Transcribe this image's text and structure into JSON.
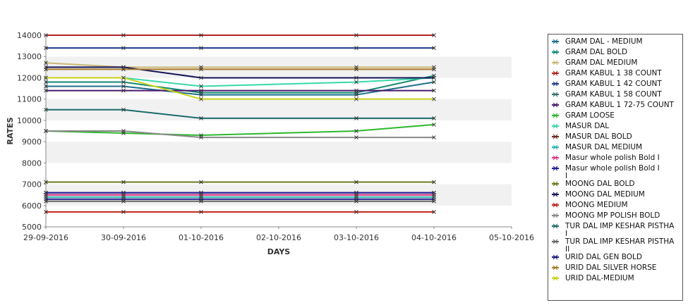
{
  "chart_data": {
    "type": "line",
    "title": "",
    "xlabel": "DAYS",
    "ylabel": "RATES",
    "x": [
      "29-09-2016",
      "30-09-2016",
      "01-10-2016",
      "03-10-2016",
      "04-10-2016"
    ],
    "x_ticks": [
      "29-09-2016",
      "30-09-2016",
      "01-10-2016",
      "02-10-2016",
      "03-10-2016",
      "04-10-2016",
      "05-10-2016"
    ],
    "xlim": [
      "29-09-2016",
      "05-10-2016"
    ],
    "ylim": [
      5000,
      14000
    ],
    "y_ticks": [
      "5000",
      "6000",
      "7000",
      "8000",
      "9000",
      "10000",
      "11000",
      "12000",
      "13000",
      "14000"
    ],
    "grid": "alternating horizontal bands",
    "legend_position": "right",
    "series": [
      {
        "name": "GRAM DAL - MEDIUM",
        "color": "#1f6f8b",
        "values": [
          11600,
          11600,
          11200,
          11200,
          11800
        ]
      },
      {
        "name": "GRAM DAL BOLD",
        "color": "#138a72",
        "values": [
          11800,
          11800,
          11300,
          11300,
          12100
        ]
      },
      {
        "name": "GRAM DAL MEDIUM",
        "color": "#c8b878",
        "values": [
          12700,
          12500,
          12500,
          12500,
          12500
        ]
      },
      {
        "name": "GRAM KABUL 1 38 COUNT",
        "color": "#b22222",
        "values": [
          14000,
          14000,
          14000,
          14000,
          14000
        ]
      },
      {
        "name": "GRAM KABUL 1 42 COUNT",
        "color": "#1e3a8a",
        "values": [
          13400,
          13400,
          13400,
          13400,
          13400
        ]
      },
      {
        "name": "GRAM KABUL 1 58 COUNT",
        "color": "#3a6e6e",
        "values": [
          6600,
          6600,
          6600,
          6600,
          6600
        ]
      },
      {
        "name": "GRAM KABUL 1 72-75 COUNT",
        "color": "#4b1a6e",
        "values": [
          11400,
          11400,
          11400,
          11400,
          11400
        ]
      },
      {
        "name": "GRAM LOOSE",
        "color": "#2db82d",
        "values": [
          9500,
          9400,
          9300,
          9500,
          9800
        ]
      },
      {
        "name": "MASUR DAL",
        "color": "#38d9a9",
        "values": [
          12000,
          12000,
          11600,
          11800,
          12000
        ]
      },
      {
        "name": "MASUR DAL BOLD",
        "color": "#6b2c1a",
        "values": [
          6500,
          6500,
          6500,
          6500,
          6500
        ]
      },
      {
        "name": "MASUR DAL MEDIUM",
        "color": "#2bb5b5",
        "values": [
          6400,
          6400,
          6400,
          6400,
          6400
        ]
      },
      {
        "name": "Masur whole polish Bold I",
        "color": "#e0338a",
        "values": [
          6500,
          6500,
          6500,
          6500,
          6500
        ]
      },
      {
        "name": "Masur whole polish Bold I I",
        "color": "#1a1a9c",
        "values": [
          6600,
          6600,
          6600,
          6600,
          6600
        ]
      },
      {
        "name": "MOONG DAL BOLD",
        "color": "#6b7a1a",
        "values": [
          7100,
          7100,
          7100,
          7100,
          7100
        ]
      },
      {
        "name": "MOONG DAL MEDIUM",
        "color": "#14145a",
        "values": [
          12500,
          12500,
          12000,
          12000,
          12000
        ]
      },
      {
        "name": "MOONG MEDIUM",
        "color": "#c0241a",
        "values": [
          5700,
          5700,
          5700,
          5700,
          5700
        ]
      },
      {
        "name": "MOONG MP POLISH BOLD",
        "color": "#888888",
        "values": [
          9500,
          9500,
          9200,
          9200,
          9200
        ]
      },
      {
        "name": "TUR DAL IMP KESHAR PISTHA I",
        "color": "#1a6b6b",
        "values": [
          10500,
          10500,
          10100,
          10100,
          10100
        ]
      },
      {
        "name": "TUR DAL IMP KESHAR PISTHA II",
        "color": "#666666",
        "values": [
          6200,
          6200,
          6200,
          6200,
          6200
        ]
      },
      {
        "name": "URID DAL GEN BOLD",
        "color": "#1a1a8c",
        "values": [
          6300,
          6300,
          6300,
          6300,
          6300
        ]
      },
      {
        "name": "URID DAL SILVER HORSE",
        "color": "#a87a2a",
        "values": [
          12400,
          12400,
          12400,
          12400,
          12400
        ]
      },
      {
        "name": "URID DAL-MEDIUM",
        "color": "#c8d41a",
        "values": [
          12000,
          12000,
          11000,
          11000,
          11000
        ]
      }
    ],
    "legend_lines": [
      [
        "GRAM DAL - MEDIUM"
      ],
      [
        "GRAM DAL BOLD"
      ],
      [
        "GRAM DAL MEDIUM"
      ],
      [
        "GRAM KABUL 1 38 COUNT"
      ],
      [
        "GRAM KABUL 1 42 COUNT"
      ],
      [
        "GRAM KABUL 1 58 COUNT"
      ],
      [
        "GRAM KABUL 1 72-75 COUNT"
      ],
      [
        "GRAM LOOSE"
      ],
      [
        "MASUR DAL"
      ],
      [
        "MASUR DAL BOLD"
      ],
      [
        "MASUR DAL MEDIUM"
      ],
      [
        "Masur whole polish Bold I"
      ],
      [
        "Masur whole polish Bold I",
        "I"
      ],
      [
        "MOONG DAL BOLD"
      ],
      [
        "MOONG DAL MEDIUM"
      ],
      [
        "MOONG MEDIUM"
      ],
      [
        "MOONG MP POLISH BOLD"
      ],
      [
        "TUR DAL IMP KESHAR PISTHA",
        "I"
      ],
      [
        "TUR DAL IMP KESHAR PISTHA",
        "II"
      ],
      [
        "URID DAL GEN BOLD"
      ],
      [
        "URID DAL SILVER HORSE"
      ],
      [
        "URID DAL-MEDIUM"
      ]
    ]
  }
}
